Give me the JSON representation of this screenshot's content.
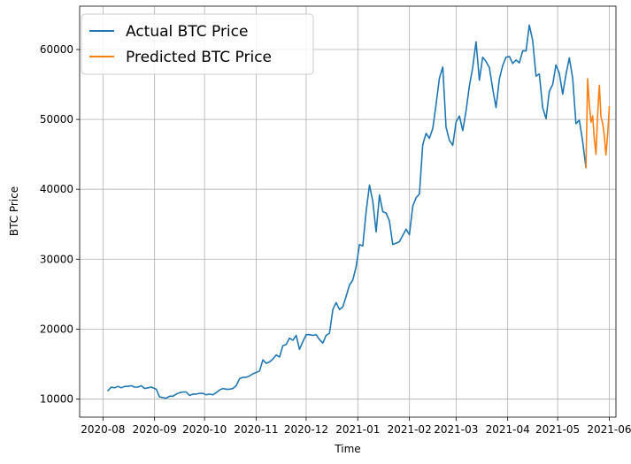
{
  "chart_data": {
    "type": "line",
    "title": "",
    "xlabel": "Time",
    "ylabel": "BTC Price",
    "x_tick_labels": [
      "2020-08",
      "2020-09",
      "2020-10",
      "2020-11",
      "2020-12",
      "2021-01",
      "2021-02",
      "2021-03",
      "2021-04",
      "2021-05",
      "2021-06"
    ],
    "x_ticks": [
      "2020-08-01",
      "2020-09-01",
      "2020-10-01",
      "2020-11-01",
      "2020-12-01",
      "2021-01-01",
      "2021-02-01",
      "2021-03-01",
      "2021-04-01",
      "2021-05-01",
      "2021-06-01"
    ],
    "xlim": [
      "2020-07-18",
      "2021-06-05"
    ],
    "y_ticks": [
      10000,
      20000,
      30000,
      40000,
      50000,
      60000
    ],
    "y_tick_labels": [
      "10000",
      "20000",
      "30000",
      "40000",
      "50000",
      "60000"
    ],
    "ylim": [
      7400,
      66200
    ],
    "grid": true,
    "legend": "upper-left",
    "series": [
      {
        "name": "Actual BTC Price",
        "color": "#1f77b4",
        "points": [
          [
            "2020-08-04",
            11200
          ],
          [
            "2020-08-06",
            11700
          ],
          [
            "2020-08-08",
            11600
          ],
          [
            "2020-08-10",
            11800
          ],
          [
            "2020-08-12",
            11600
          ],
          [
            "2020-08-14",
            11800
          ],
          [
            "2020-08-16",
            11800
          ],
          [
            "2020-08-18",
            11900
          ],
          [
            "2020-08-20",
            11700
          ],
          [
            "2020-08-22",
            11700
          ],
          [
            "2020-08-24",
            11900
          ],
          [
            "2020-08-26",
            11500
          ],
          [
            "2020-08-28",
            11600
          ],
          [
            "2020-08-30",
            11700
          ],
          [
            "2020-09-02",
            11400
          ],
          [
            "2020-09-04",
            10300
          ],
          [
            "2020-09-06",
            10200
          ],
          [
            "2020-09-08",
            10100
          ],
          [
            "2020-09-10",
            10400
          ],
          [
            "2020-09-12",
            10400
          ],
          [
            "2020-09-14",
            10700
          ],
          [
            "2020-09-16",
            10900
          ],
          [
            "2020-09-18",
            11000
          ],
          [
            "2020-09-20",
            11000
          ],
          [
            "2020-09-22",
            10500
          ],
          [
            "2020-09-24",
            10700
          ],
          [
            "2020-09-26",
            10700
          ],
          [
            "2020-09-28",
            10800
          ],
          [
            "2020-09-30",
            10800
          ],
          [
            "2020-10-02",
            10600
          ],
          [
            "2020-10-04",
            10700
          ],
          [
            "2020-10-06",
            10600
          ],
          [
            "2020-10-08",
            10900
          ],
          [
            "2020-10-10",
            11300
          ],
          [
            "2020-10-12",
            11500
          ],
          [
            "2020-10-14",
            11400
          ],
          [
            "2020-10-16",
            11400
          ],
          [
            "2020-10-18",
            11500
          ],
          [
            "2020-10-20",
            11900
          ],
          [
            "2020-10-22",
            12900
          ],
          [
            "2020-10-24",
            13100
          ],
          [
            "2020-10-26",
            13100
          ],
          [
            "2020-10-28",
            13300
          ],
          [
            "2020-10-30",
            13600
          ],
          [
            "2020-11-01",
            13800
          ],
          [
            "2020-11-03",
            14000
          ],
          [
            "2020-11-05",
            15600
          ],
          [
            "2020-11-07",
            15100
          ],
          [
            "2020-11-09",
            15300
          ],
          [
            "2020-11-11",
            15700
          ],
          [
            "2020-11-13",
            16300
          ],
          [
            "2020-11-15",
            16000
          ],
          [
            "2020-11-17",
            17600
          ],
          [
            "2020-11-19",
            17800
          ],
          [
            "2020-11-21",
            18700
          ],
          [
            "2020-11-23",
            18400
          ],
          [
            "2020-11-25",
            19100
          ],
          [
            "2020-11-27",
            17100
          ],
          [
            "2020-11-29",
            18200
          ],
          [
            "2020-12-01",
            19200
          ],
          [
            "2020-12-03",
            19200
          ],
          [
            "2020-12-05",
            19100
          ],
          [
            "2020-12-07",
            19200
          ],
          [
            "2020-12-09",
            18500
          ],
          [
            "2020-12-11",
            18000
          ],
          [
            "2020-12-13",
            19100
          ],
          [
            "2020-12-15",
            19400
          ],
          [
            "2020-12-17",
            22800
          ],
          [
            "2020-12-19",
            23800
          ],
          [
            "2020-12-21",
            22800
          ],
          [
            "2020-12-23",
            23200
          ],
          [
            "2020-12-25",
            24700
          ],
          [
            "2020-12-27",
            26300
          ],
          [
            "2020-12-29",
            27000
          ],
          [
            "2020-12-31",
            28900
          ],
          [
            "2021-01-02",
            32100
          ],
          [
            "2021-01-04",
            31900
          ],
          [
            "2021-01-06",
            36800
          ],
          [
            "2021-01-08",
            40600
          ],
          [
            "2021-01-10",
            38300
          ],
          [
            "2021-01-12",
            33900
          ],
          [
            "2021-01-14",
            39200
          ],
          [
            "2021-01-16",
            36800
          ],
          [
            "2021-01-18",
            36600
          ],
          [
            "2021-01-20",
            35500
          ],
          [
            "2021-01-22",
            32100
          ],
          [
            "2021-01-24",
            32300
          ],
          [
            "2021-01-26",
            32500
          ],
          [
            "2021-01-28",
            33400
          ],
          [
            "2021-01-30",
            34300
          ],
          [
            "2021-02-01",
            33500
          ],
          [
            "2021-02-03",
            37600
          ],
          [
            "2021-02-05",
            38800
          ],
          [
            "2021-02-07",
            39300
          ],
          [
            "2021-02-09",
            46400
          ],
          [
            "2021-02-11",
            48000
          ],
          [
            "2021-02-13",
            47300
          ],
          [
            "2021-02-15",
            48700
          ],
          [
            "2021-02-17",
            52100
          ],
          [
            "2021-02-19",
            55900
          ],
          [
            "2021-02-21",
            57500
          ],
          [
            "2021-02-23",
            48900
          ],
          [
            "2021-02-25",
            47000
          ],
          [
            "2021-02-27",
            46300
          ],
          [
            "2021-03-01",
            49600
          ],
          [
            "2021-03-03",
            50500
          ],
          [
            "2021-03-05",
            48400
          ],
          [
            "2021-03-07",
            51200
          ],
          [
            "2021-03-09",
            54800
          ],
          [
            "2021-03-11",
            57400
          ],
          [
            "2021-03-13",
            61100
          ],
          [
            "2021-03-15",
            55600
          ],
          [
            "2021-03-17",
            58900
          ],
          [
            "2021-03-19",
            58300
          ],
          [
            "2021-03-21",
            57400
          ],
          [
            "2021-03-23",
            54400
          ],
          [
            "2021-03-25",
            51700
          ],
          [
            "2021-03-27",
            55800
          ],
          [
            "2021-03-29",
            57700
          ],
          [
            "2021-03-31",
            58900
          ],
          [
            "2021-04-02",
            59000
          ],
          [
            "2021-04-04",
            58000
          ],
          [
            "2021-04-06",
            58500
          ],
          [
            "2021-04-08",
            58100
          ],
          [
            "2021-04-10",
            59800
          ],
          [
            "2021-04-12",
            59800
          ],
          [
            "2021-04-14",
            63500
          ],
          [
            "2021-04-16",
            61300
          ],
          [
            "2021-04-18",
            56200
          ],
          [
            "2021-04-20",
            56500
          ],
          [
            "2021-04-22",
            51700
          ],
          [
            "2021-04-24",
            50100
          ],
          [
            "2021-04-26",
            54000
          ],
          [
            "2021-04-28",
            55000
          ],
          [
            "2021-04-30",
            57800
          ],
          [
            "2021-05-02",
            56600
          ],
          [
            "2021-05-04",
            53600
          ],
          [
            "2021-05-06",
            56400
          ],
          [
            "2021-05-08",
            58800
          ],
          [
            "2021-05-10",
            55900
          ],
          [
            "2021-05-12",
            49400
          ],
          [
            "2021-05-14",
            49900
          ],
          [
            "2021-05-16",
            46800
          ],
          [
            "2021-05-18",
            43100
          ]
        ]
      },
      {
        "name": "Predicted BTC Price",
        "color": "#ff7f0e",
        "points": [
          [
            "2021-05-18",
            43100
          ],
          [
            "2021-05-19",
            55800
          ],
          [
            "2021-05-20",
            52200
          ],
          [
            "2021-05-21",
            49600
          ],
          [
            "2021-05-22",
            50500
          ],
          [
            "2021-05-23",
            47300
          ],
          [
            "2021-05-24",
            45000
          ],
          [
            "2021-05-25",
            50600
          ],
          [
            "2021-05-26",
            54900
          ],
          [
            "2021-05-27",
            50300
          ],
          [
            "2021-05-28",
            49500
          ],
          [
            "2021-05-29",
            47800
          ],
          [
            "2021-05-30",
            44900
          ],
          [
            "2021-05-31",
            47800
          ],
          [
            "2021-06-01",
            51800
          ]
        ]
      }
    ]
  }
}
